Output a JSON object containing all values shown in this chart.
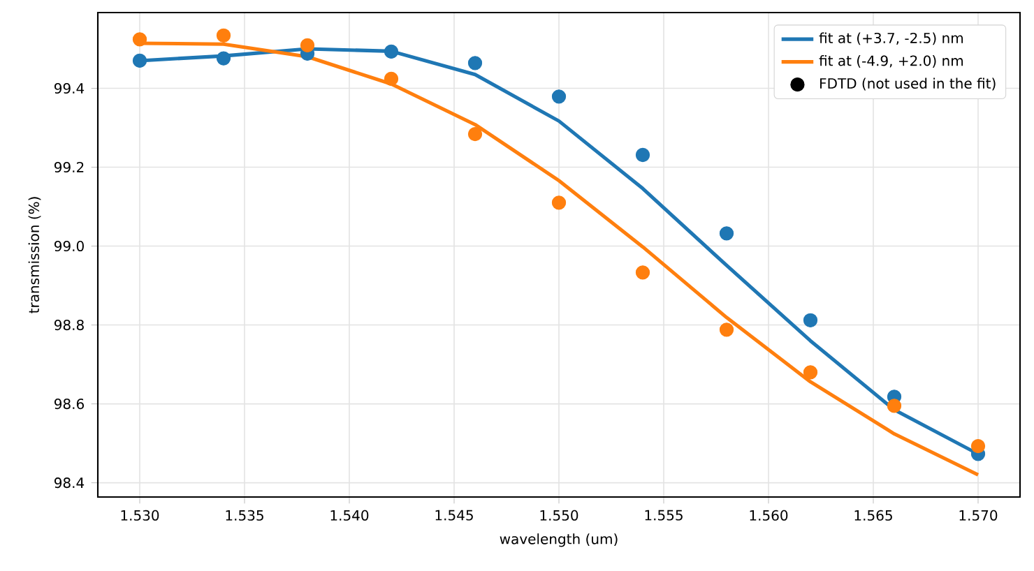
{
  "chart_data": {
    "type": "line",
    "xlabel": "wavelength (um)",
    "ylabel": "transmission (%)",
    "x": [
      1.53,
      1.534,
      1.538,
      1.542,
      1.546,
      1.55,
      1.554,
      1.558,
      1.562,
      1.566,
      1.57
    ],
    "xlim": [
      1.528,
      1.572
    ],
    "ylim": [
      98.364,
      99.592
    ],
    "xticks": [
      {
        "value": 1.53,
        "label": "1.530"
      },
      {
        "value": 1.535,
        "label": "1.535"
      },
      {
        "value": 1.54,
        "label": "1.540"
      },
      {
        "value": 1.545,
        "label": "1.545"
      },
      {
        "value": 1.55,
        "label": "1.550"
      },
      {
        "value": 1.555,
        "label": "1.555"
      },
      {
        "value": 1.56,
        "label": "1.560"
      },
      {
        "value": 1.565,
        "label": "1.565"
      },
      {
        "value": 1.57,
        "label": "1.570"
      }
    ],
    "yticks": [
      98.4,
      98.6,
      98.8,
      {
        "value": 99.0,
        "label": "99.0"
      },
      99.2,
      99.4
    ],
    "grid": true,
    "legend": "top right",
    "series": [
      {
        "name": "fit at (+3.7, -2.5) nm",
        "color": "#1f77b4",
        "marker": "none",
        "values": [
          99.47,
          99.482,
          99.5,
          99.494,
          99.435,
          99.317,
          99.146,
          98.951,
          98.76,
          98.585,
          98.473
        ]
      },
      {
        "name": "fit at (-4.9, +2.0) nm",
        "color": "#ff7f0e",
        "marker": "none",
        "values": [
          99.514,
          99.512,
          99.48,
          99.411,
          99.308,
          99.166,
          98.998,
          98.819,
          98.656,
          98.524,
          98.42
        ]
      },
      {
        "type": "scatter",
        "color": "#1f77b4",
        "marker": "circle",
        "values": [
          99.47,
          99.476,
          99.488,
          99.493,
          99.464,
          99.379,
          99.231,
          99.032,
          98.812,
          98.618,
          98.473
        ]
      },
      {
        "type": "scatter",
        "color": "#ff7f0e",
        "marker": "circle",
        "values": [
          99.524,
          99.534,
          99.509,
          99.424,
          99.284,
          99.11,
          98.933,
          98.788,
          98.68,
          98.595,
          98.493
        ]
      },
      {
        "type": "scatter",
        "name": "FDTD (not used in the fit)",
        "color": "#000000",
        "marker": "circle",
        "values": [
          null,
          null,
          null,
          null,
          null,
          null,
          null,
          null,
          null,
          null,
          null
        ]
      }
    ]
  }
}
